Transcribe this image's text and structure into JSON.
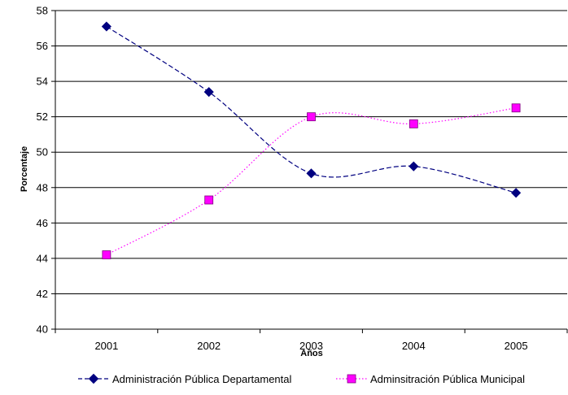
{
  "chart_data": {
    "type": "line",
    "title": "",
    "xlabel": "Años",
    "ylabel": "Porcentaje",
    "categories": [
      "2001",
      "2002",
      "2003",
      "2004",
      "2005"
    ],
    "ylim": [
      40,
      58
    ],
    "yticks": [
      40,
      42,
      44,
      46,
      48,
      50,
      52,
      54,
      56,
      58
    ],
    "grid": "horizontal major gridlines",
    "legend_position": "bottom",
    "smooth": true,
    "series": [
      {
        "name": "Administración Pública Departamental",
        "values": [
          57.1,
          53.4,
          48.8,
          49.2,
          47.7
        ],
        "color": "#000080",
        "line_style": "dashed",
        "marker": "diamond"
      },
      {
        "name": "Adminsitración Pública Municipal",
        "values": [
          44.2,
          47.3,
          52.0,
          51.6,
          52.5
        ],
        "color": "#FF00FF",
        "line_style": "dotted",
        "marker": "square"
      }
    ]
  }
}
